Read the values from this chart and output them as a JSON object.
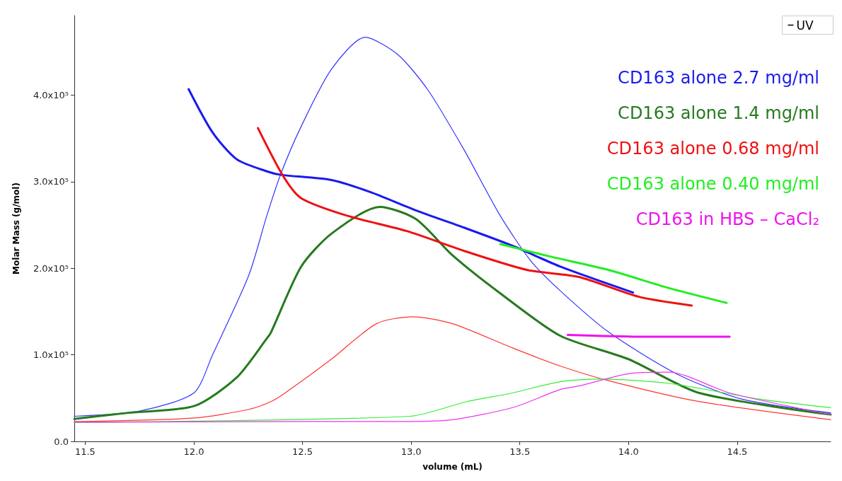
{
  "chart_data": {
    "type": "line",
    "xlabel": "volume (mL)",
    "ylabel": "Molar Mass (g/mol)",
    "xlim": [
      11.45,
      14.93
    ],
    "xticks": [
      11.5,
      {
        "value": 12,
        "label": "12.0"
      },
      12.5,
      {
        "value": 13,
        "label": "13.0"
      },
      13.5,
      {
        "value": 14,
        "label": "14.0"
      },
      14.5
    ],
    "ylim": [
      0,
      492000
    ],
    "yticks": [
      {
        "value": 0,
        "label": "0.0"
      },
      {
        "value": 100000,
        "label": "1.0x10⁵"
      },
      {
        "value": 200000,
        "label": "2.0x10⁵"
      },
      {
        "value": 300000,
        "label": "3.0x10⁵"
      },
      {
        "value": 400000,
        "label": "4.0x10⁵"
      }
    ],
    "grid": false,
    "marker": "none",
    "line_style": "solid",
    "annotations": [
      "UV"
    ],
    "series": [
      {
        "color": "#3333ff",
        "x": [
          11.45,
          11.75,
          12.0,
          12.086,
          12.253,
          12.336,
          12.4,
          12.494,
          12.633,
          12.788,
          12.938,
          13.077,
          13.243,
          13.409,
          13.549,
          13.686,
          13.91,
          14.229,
          14.52,
          14.93
        ],
        "values": [
          29000,
          35000,
          56000,
          100000,
          192000,
          261000,
          309000,
          364000,
          430000,
          467000,
          447000,
          406000,
          337000,
          261000,
          209000,
          174000,
          126000,
          77000,
          49000,
          33000
        ]
      },
      {
        "name": "CD163 alone 2.7 mg/ml",
        "color": "#1a1aee",
        "x": [
          11.976,
          12.086,
          12.197,
          12.336,
          12.4,
          12.633,
          12.813,
          13.021,
          13.243,
          13.466,
          13.686,
          14.021
        ],
        "values": [
          407000,
          357000,
          326000,
          312000,
          308000,
          302000,
          288000,
          267000,
          247000,
          226000,
          202000,
          172000
        ]
      },
      {
        "name": "CD163 alone 1.4 mg/ml",
        "color": "#267a1f",
        "x": [
          11.45,
          11.698,
          12.003,
          12.198,
          12.336,
          12.355,
          12.494,
          12.633,
          12.855,
          13.021,
          13.19,
          13.41,
          13.686,
          14.0,
          14.325,
          14.93
        ],
        "values": [
          26000,
          33000,
          41000,
          74000,
          119000,
          126000,
          202000,
          240000,
          271000,
          257000,
          215000,
          171000,
          122000,
          95000,
          56000,
          31000
        ]
      },
      {
        "color": "#ff3333",
        "x": [
          11.45,
          12.003,
          12.253,
          12.355,
          12.42,
          12.633,
          12.84,
          13.006,
          13.19,
          13.466,
          13.686,
          13.91,
          14.325,
          14.93
        ],
        "values": [
          23000,
          27000,
          37000,
          46000,
          56000,
          95000,
          136000,
          144000,
          136000,
          108000,
          87000,
          70000,
          46000,
          25000
        ]
      },
      {
        "name": "CD163 alone 0.68 mg/ml",
        "color": "#ee1111",
        "x": [
          12.295,
          12.41,
          12.494,
          12.702,
          12.98,
          13.257,
          13.535,
          13.771,
          14.048,
          14.291
        ],
        "values": [
          362000,
          307000,
          281000,
          261000,
          243000,
          219000,
          198000,
          190000,
          167000,
          157000
        ]
      },
      {
        "color": "#33ee33",
        "x": [
          11.45,
          12.994,
          13.257,
          13.466,
          13.686,
          13.868,
          14.187,
          14.6,
          14.93
        ],
        "values": [
          22000,
          29000,
          46000,
          56000,
          69000,
          72000,
          67000,
          49000,
          39000
        ]
      },
      {
        "name": "CD163 alone 0.40 mg/ml",
        "color": "#22ee22",
        "x": [
          13.41,
          13.632,
          13.91,
          14.187,
          14.451
        ],
        "values": [
          228000,
          214000,
          198000,
          177000,
          160000
        ]
      },
      {
        "color": "#ee33ee",
        "x": [
          11.45,
          12.5,
          13.0,
          13.19,
          13.466,
          13.686,
          13.771,
          14.021,
          14.187,
          14.465,
          14.93
        ],
        "values": [
          22000,
          23000,
          23000,
          25000,
          39000,
          60000,
          64000,
          79000,
          80000,
          56000,
          31000
        ]
      },
      {
        "name": "CD163 in HBS – CaCl₂",
        "color": "#ee11ee",
        "x": [
          13.72,
          14.047,
          14.465
        ],
        "values": [
          123000,
          121000,
          121000
        ]
      }
    ]
  }
}
